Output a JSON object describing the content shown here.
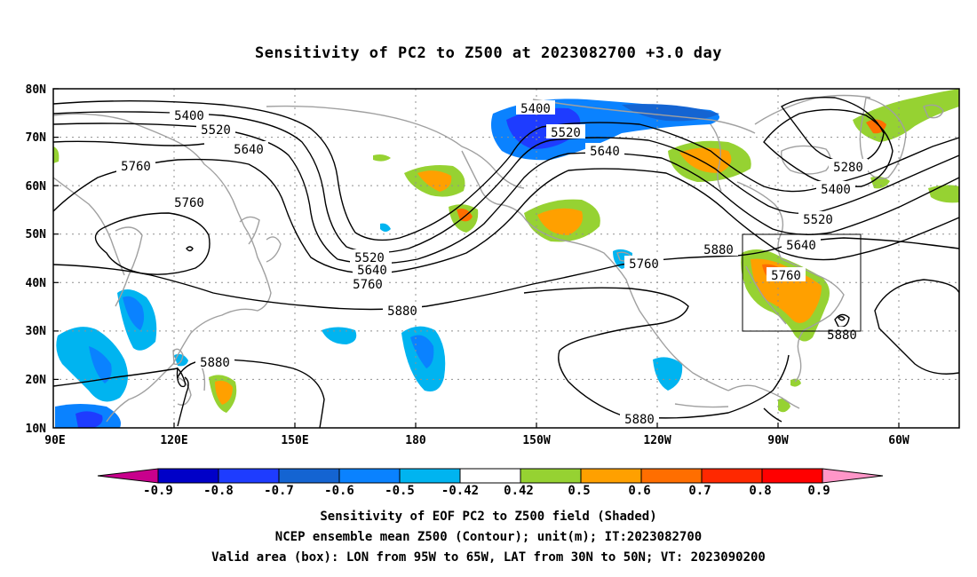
{
  "title": "Sensitivity of PC2 to Z500 at 2023082700 +3.0 day",
  "captions": {
    "line1": "Sensitivity of EOF PC2 to Z500 field (Shaded)",
    "line2": "NCEP ensemble mean Z500 (Contour); unit(m); IT:2023082700",
    "line3": "Valid area (box): LON from 95W to 65W, LAT from 30N to 50N; VT: 2023090200"
  },
  "lat_labels": [
    "80N",
    "70N",
    "60N",
    "50N",
    "40N",
    "30N",
    "20N",
    "10N"
  ],
  "lon_labels": [
    "90E",
    "120E",
    "150E",
    "180",
    "150W",
    "120W",
    "90W",
    "60W"
  ],
  "colorbar": {
    "labels": [
      "-0.9",
      "-0.8",
      "-0.7",
      "-0.6",
      "-0.5",
      "-0.42",
      "0.42",
      "0.5",
      "0.6",
      "0.7",
      "0.8",
      "0.9"
    ],
    "colors": [
      "#c8008c",
      "#0000c8",
      "#1e3cff",
      "#1464d2",
      "#0a82ff",
      "#00b4f0",
      "#ffffff",
      "#96d232",
      "#ffa000",
      "#ff6e00",
      "#ff2800",
      "#ff0000",
      "#ff96c8"
    ]
  },
  "contour_labels": [
    {
      "text": "5400",
      "k": "a"
    },
    {
      "text": "5520",
      "k": "b"
    },
    {
      "text": "5640",
      "k": "c"
    },
    {
      "text": "5760",
      "k": "d"
    },
    {
      "text": "5760",
      "k": "e"
    },
    {
      "text": "5520",
      "k": "f"
    },
    {
      "text": "5640",
      "k": "g"
    },
    {
      "text": "5760",
      "k": "h"
    },
    {
      "text": "5880",
      "k": "i"
    },
    {
      "text": "5880",
      "k": "j"
    },
    {
      "text": "5400",
      "k": "k"
    },
    {
      "text": "5520",
      "k": "l"
    },
    {
      "text": "5640",
      "k": "m"
    },
    {
      "text": "5760",
      "k": "n"
    },
    {
      "text": "5880",
      "k": "o"
    },
    {
      "text": "5280",
      "k": "p"
    },
    {
      "text": "5400",
      "k": "q"
    },
    {
      "text": "5520",
      "k": "r"
    },
    {
      "text": "5640",
      "k": "s"
    },
    {
      "text": "5760",
      "k": "t"
    },
    {
      "text": "5880",
      "k": "u"
    },
    {
      "text": "5880",
      "k": "v"
    }
  ],
  "valid_box": {
    "lon_w": "95W",
    "lon_e": "65W",
    "lat_s": "30N",
    "lat_n": "50N"
  }
}
